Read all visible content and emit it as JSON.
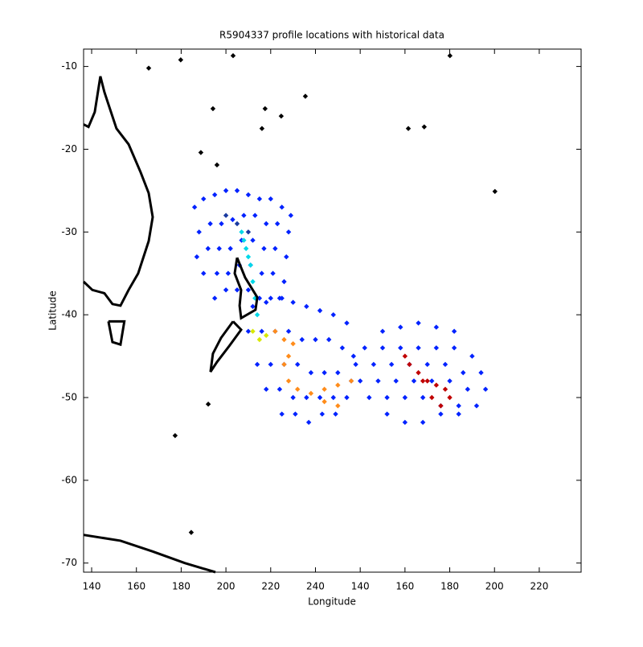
{
  "chart_data": {
    "type": "scatter",
    "title": "R5904337 profile locations with historical data",
    "x_label": "Longitude",
    "y_label": "Latitude",
    "xlim": [
      136.4,
      358.7
    ],
    "ylim": [
      -71.1,
      -7.9
    ],
    "xticks": [
      140,
      160,
      180,
      200,
      220,
      240,
      {
        "value": 260,
        "label": "140"
      },
      {
        "value": 280,
        "label": "160"
      },
      {
        "value": 300,
        "label": "180"
      },
      {
        "value": 320,
        "label": "200"
      },
      {
        "value": 340,
        "label": "220"
      }
    ],
    "yticks": [
      -70,
      -60,
      -50,
      -40,
      -30,
      -20,
      -10
    ],
    "series": [
      {
        "color": "#0022ff",
        "mode": "marker",
        "x": [
          186,
          190,
          195,
          200,
          205,
          210,
          215,
          220,
          225,
          229,
          188,
          193,
          198,
          203,
          208,
          213,
          218,
          223,
          228,
          187,
          192,
          197,
          202,
          207,
          212,
          217,
          222,
          227,
          190,
          196,
          201,
          206,
          211,
          216,
          221,
          226,
          195,
          200,
          205,
          210,
          215,
          220,
          225
        ],
        "y": [
          -27,
          -26,
          -25.5,
          -25,
          -25,
          -25.5,
          -26,
          -26,
          -27,
          -28,
          -30,
          -29,
          -29,
          -28.5,
          -28,
          -28,
          -29,
          -29,
          -30,
          -33,
          -32,
          -32,
          -32,
          -31,
          -31,
          -32,
          -32,
          -33,
          -35,
          -35,
          -35,
          -34,
          -34,
          -35,
          -35,
          -36,
          -38,
          -37,
          -37,
          -37,
          -38,
          -38,
          -38
        ]
      },
      {
        "color": "#0022ff",
        "mode": "marker",
        "x": [
          212,
          218,
          224,
          230,
          236,
          242,
          248,
          254,
          210,
          216,
          222,
          228,
          234,
          240,
          246,
          252,
          257,
          214,
          220,
          226,
          232,
          238,
          244,
          250,
          256,
          218,
          224,
          230,
          236,
          242,
          248,
          254,
          225,
          231,
          237,
          243,
          249
        ],
        "y": [
          -39,
          -38.5,
          -38,
          -38.5,
          -39,
          -39.5,
          -40,
          -41,
          -42,
          -42,
          -42,
          -42,
          -43,
          -43,
          -43,
          -44,
          -45,
          -46,
          -46,
          -46,
          -46,
          -47,
          -47,
          -47,
          -48,
          -49,
          -49,
          -50,
          -50,
          -50,
          -50,
          -50,
          -52,
          -52,
          -53,
          -52,
          -52
        ]
      },
      {
        "color": "#0022ff",
        "mode": "marker",
        "x": [
          270,
          278,
          286,
          294,
          302,
          262,
          270,
          278,
          286,
          294,
          302,
          310,
          258,
          266,
          274,
          282,
          290,
          298,
          306,
          314,
          260,
          268,
          276,
          284,
          292,
          300,
          308,
          316,
          264,
          272,
          280,
          288,
          296,
          304,
          312,
          272,
          280,
          288,
          296,
          304
        ],
        "y": [
          -42,
          -41.5,
          -41,
          -41.5,
          -42,
          -44,
          -44,
          -44,
          -44,
          -44,
          -44,
          -45,
          -46,
          -46,
          -46,
          -46,
          -46,
          -46,
          -47,
          -47,
          -48,
          -48,
          -48,
          -48,
          -48,
          -48,
          -49,
          -49,
          -50,
          -50,
          -50,
          -50,
          -51,
          -51,
          -51,
          -52,
          -53,
          -53,
          -52,
          -52
        ]
      },
      {
        "color": "#1a3aa0",
        "mode": "marker",
        "x": [
          200,
          205,
          210
        ],
        "y": [
          -28,
          -29,
          -30
        ]
      },
      {
        "color": "#00d8e8",
        "mode": "marker",
        "x": [
          207,
          208,
          209,
          210,
          211,
          212,
          213,
          214
        ],
        "y": [
          -30,
          -31,
          -32,
          -33,
          -34,
          -36,
          -38,
          -40
        ]
      },
      {
        "color": "#d8e800",
        "mode": "marker",
        "x": [
          212,
          215,
          218
        ],
        "y": [
          -42,
          -43,
          -42.5
        ]
      },
      {
        "color": "#ff8c1a",
        "mode": "marker",
        "x": [
          222,
          226,
          230,
          228,
          226,
          228,
          232,
          238,
          244,
          250,
          256,
          244,
          250
        ],
        "y": [
          -42,
          -43,
          -43.5,
          -45,
          -46,
          -48,
          -49,
          -49.5,
          -49,
          -48.5,
          -48,
          -50.5,
          -51
        ]
      },
      {
        "color": "#c00000",
        "mode": "marker",
        "x": [
          280,
          282,
          286,
          290,
          294,
          298,
          300,
          296,
          292,
          288
        ],
        "y": [
          -45,
          -46,
          -47,
          -48,
          -48.5,
          -49,
          -50,
          -51,
          -50,
          -48
        ]
      },
      {
        "color": "#000000",
        "mode": "line",
        "x": [
          136.4,
          138.6,
          141.4,
          143.9,
          145.7,
          151.1,
          156.5,
          161.9,
          165.5,
          167.3,
          165.5,
          160.8,
          156.5,
          152.9,
          149.3,
          145.7,
          140.3,
          136.4
        ],
        "y": [
          -17.0,
          -17.3,
          -15.5,
          -11.2,
          -13.1,
          -17.5,
          -19.4,
          -22.8,
          -25.3,
          -28.2,
          -31.1,
          -35.0,
          -37.0,
          -38.9,
          -38.7,
          -37.4,
          -37.0,
          -36.0
        ]
      },
      {
        "color": "#000000",
        "mode": "line",
        "x": [
          147.5,
          154.6,
          152.9,
          149.3,
          147.5
        ],
        "y": [
          -40.8,
          -40.8,
          -43.6,
          -43.3,
          -40.8
        ]
      },
      {
        "color": "#000000",
        "mode": "line",
        "x": [
          205.0,
          208.6,
          214.0,
          213.2,
          206.8,
          206.1,
          206.8,
          203.9,
          205.0
        ],
        "y": [
          -33.1,
          -35.5,
          -37.9,
          -39.4,
          -40.4,
          -38.9,
          -37.0,
          -35.0,
          -33.1
        ]
      },
      {
        "color": "#000000",
        "mode": "line",
        "x": [
          203.2,
          206.8,
          201.4,
          196.0,
          193.1,
          194.2,
          197.8,
          203.2
        ],
        "y": [
          -40.8,
          -41.8,
          -43.8,
          -45.7,
          -46.9,
          -44.7,
          -42.8,
          -40.8
        ]
      },
      {
        "color": "#000000",
        "mode": "line",
        "x": [
          136.4,
          152.9,
          167.3,
          181.6,
          195.3
        ],
        "y": [
          -66.6,
          -67.3,
          -68.6,
          -70.0,
          -71.1
        ]
      },
      {
        "color": "#000000",
        "mode": "marker",
        "x": [
          177.3,
          192.1,
          184.5,
          300.1,
          320.2,
          281.5,
          288.6,
          216.1,
          217.5,
          203.2,
          194.2,
          188.8,
          196.0,
          235.5,
          224.7,
          165.5,
          179.8
        ],
        "y": [
          -54.6,
          -50.8,
          -66.3,
          -8.7,
          -25.1,
          -17.5,
          -17.3,
          -17.5,
          -15.1,
          -8.7,
          -15.1,
          -20.4,
          -21.9,
          -13.6,
          -16.0,
          -10.2,
          -9.2
        ]
      }
    ]
  }
}
